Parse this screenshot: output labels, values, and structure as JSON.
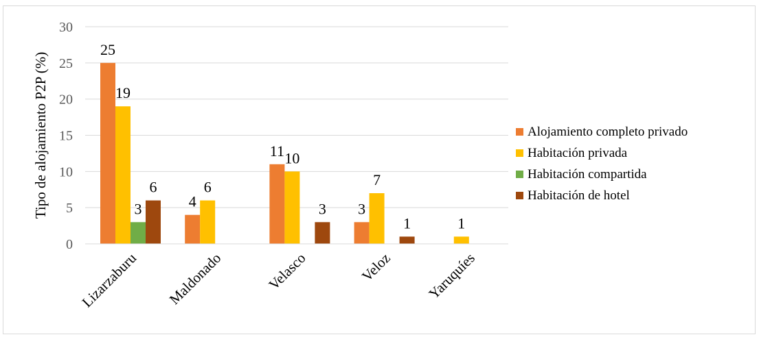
{
  "chart_data": {
    "type": "bar",
    "ylabel": "Tipo de alojamiento P2P (%)",
    "ylim": [
      0,
      30
    ],
    "yticks": [
      0,
      5,
      10,
      15,
      20,
      25,
      30
    ],
    "grid": true,
    "legend_position": "right",
    "categories": [
      "Lizarzaburu",
      "Maldonado",
      "Velasco",
      "Veloz",
      "Yaruquíes"
    ],
    "series": [
      {
        "name": "Alojamiento completo privado",
        "color": "#ED7D31",
        "values": [
          25,
          4,
          11,
          3,
          0
        ]
      },
      {
        "name": "Habitación privada",
        "color": "#FFC000",
        "values": [
          19,
          6,
          10,
          7,
          1
        ]
      },
      {
        "name": "Habitación compartida",
        "color": "#70AD47",
        "values": [
          3,
          0,
          0,
          0,
          0
        ]
      },
      {
        "name": "Habitación de hotel",
        "color": "#9E480E",
        "values": [
          6,
          0,
          3,
          1,
          0
        ]
      }
    ]
  }
}
